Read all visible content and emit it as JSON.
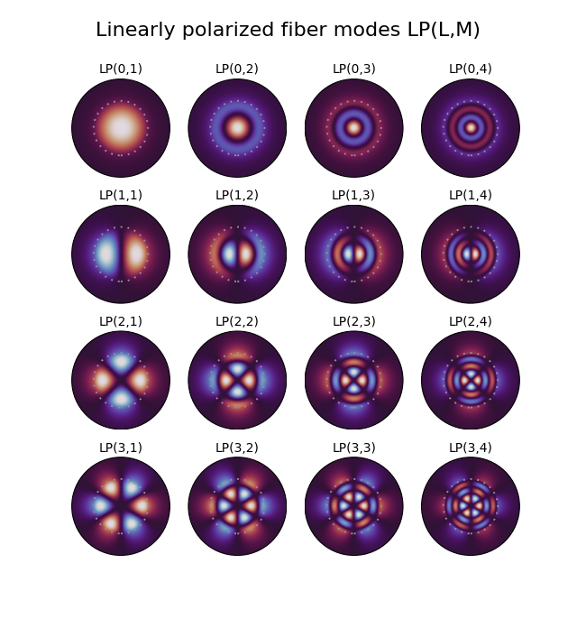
{
  "chart_data": {
    "type": "image_grid",
    "title": "Linearly polarized fiber modes LP(L,M)",
    "tick_labels": false,
    "panels": [
      {
        "title": "LP(0,1)",
        "l": 0,
        "m": 1
      },
      {
        "title": "LP(0,2)",
        "l": 0,
        "m": 2
      },
      {
        "title": "LP(0,3)",
        "l": 0,
        "m": 3
      },
      {
        "title": "LP(0,4)",
        "l": 0,
        "m": 4
      },
      {
        "title": "LP(1,1)",
        "l": 1,
        "m": 1
      },
      {
        "title": "LP(1,2)",
        "l": 1,
        "m": 2
      },
      {
        "title": "LP(1,3)",
        "l": 1,
        "m": 3
      },
      {
        "title": "LP(1,4)",
        "l": 1,
        "m": 4
      },
      {
        "title": "LP(2,1)",
        "l": 2,
        "m": 1
      },
      {
        "title": "LP(2,2)",
        "l": 2,
        "m": 2
      },
      {
        "title": "LP(2,3)",
        "l": 2,
        "m": 3
      },
      {
        "title": "LP(2,4)",
        "l": 2,
        "m": 4
      },
      {
        "title": "LP(3,1)",
        "l": 3,
        "m": 1
      },
      {
        "title": "LP(3,2)",
        "l": 3,
        "m": 2
      },
      {
        "title": "LP(3,3)",
        "l": 3,
        "m": 3
      },
      {
        "title": "LP(3,4)",
        "l": 3,
        "m": 4
      }
    ]
  }
}
